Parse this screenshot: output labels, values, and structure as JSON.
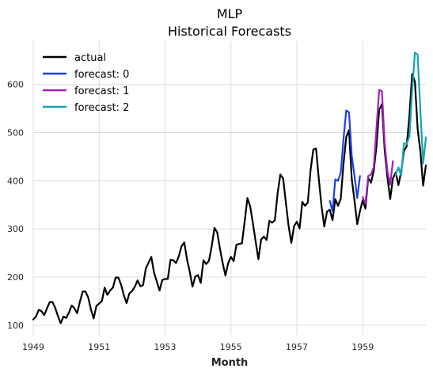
{
  "chart_data": {
    "type": "line",
    "title": "MLP",
    "subtitle": "Historical Forecasts",
    "xlabel": "Month",
    "ylabel": "",
    "xlim": [
      "1949-01",
      "1960-12"
    ],
    "ylim": [
      80,
      690
    ],
    "x_ticks": [
      "1949",
      "1951",
      "1953",
      "1955",
      "1957",
      "1959"
    ],
    "y_ticks": [
      100,
      200,
      300,
      400,
      500,
      600
    ],
    "grid": true,
    "legend_position": "top-left",
    "series": [
      {
        "name": "actual",
        "color": "#000000",
        "start": "1949-01",
        "values": [
          112,
          118,
          132,
          129,
          121,
          135,
          148,
          148,
          136,
          119,
          104,
          118,
          115,
          126,
          141,
          135,
          125,
          149,
          170,
          170,
          158,
          133,
          114,
          140,
          145,
          150,
          178,
          163,
          172,
          178,
          199,
          199,
          184,
          162,
          146,
          166,
          171,
          180,
          193,
          181,
          183,
          218,
          230,
          242,
          209,
          191,
          172,
          194,
          196,
          196,
          236,
          235,
          229,
          243,
          264,
          272,
          237,
          211,
          180,
          201,
          204,
          188,
          235,
          227,
          234,
          264,
          302,
          293,
          259,
          229,
          203,
          229,
          242,
          233,
          267,
          269,
          270,
          315,
          364,
          347,
          312,
          274,
          237,
          278,
          284,
          277,
          317,
          313,
          318,
          374,
          413,
          405,
          355,
          306,
          271,
          306,
          315,
          301,
          356,
          348,
          355,
          422,
          465,
          467,
          404,
          347,
          305,
          336,
          340,
          318,
          362,
          348,
          363,
          435,
          491,
          505,
          404,
          359,
          310,
          337,
          360,
          342,
          406,
          396,
          420,
          472,
          548,
          559,
          463,
          407,
          362,
          405,
          417,
          391,
          419,
          461,
          472,
          535,
          622,
          606,
          508,
          461,
          390,
          432
        ]
      },
      {
        "name": "forecast: 0",
        "color": "#1f3de8",
        "start": "1958-01",
        "values": [
          358,
          337,
          403,
          400,
          417,
          487,
          546,
          542,
          452,
          410,
          364,
          410
        ]
      },
      {
        "name": "forecast: 1",
        "color": "#a21fbd",
        "start": "1959-01",
        "values": [
          366,
          352,
          410,
          413,
          428,
          508,
          589,
          586,
          478,
          420,
          392,
          441
        ]
      },
      {
        "name": "forecast: 2",
        "color": "#17a3b2",
        "start": "1960-01",
        "values": [
          412,
          428,
          410,
          478,
          476,
          492,
          586,
          666,
          662,
          545,
          436,
          490
        ]
      }
    ]
  }
}
